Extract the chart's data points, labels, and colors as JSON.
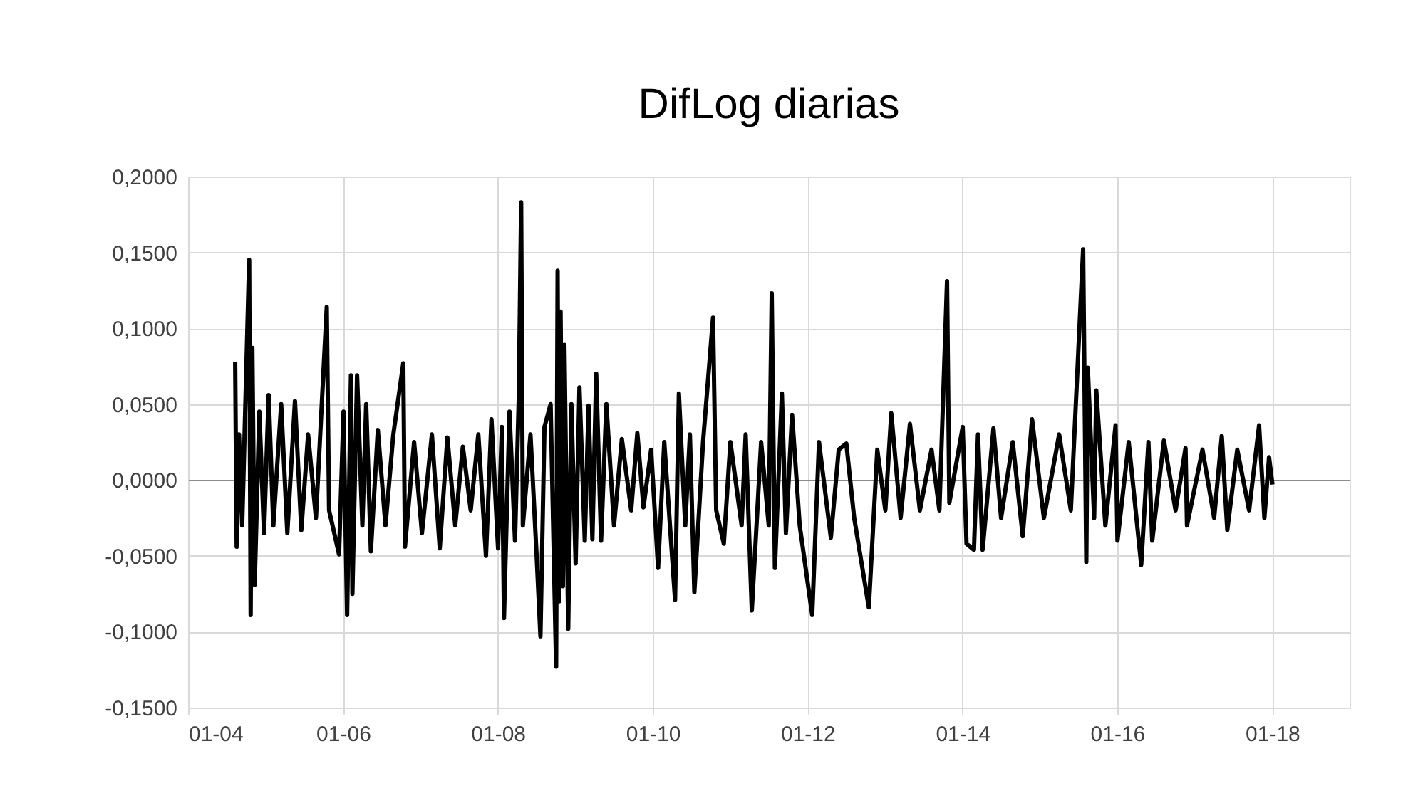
{
  "chart_data": {
    "type": "line",
    "title": "DifLog diarias",
    "x": [
      "2004-08-10",
      "2004-08-17",
      "2004-08-28",
      "2004-09-12",
      "2004-10-15",
      "2004-10-22",
      "2004-10-30",
      "2004-11-10",
      "2004-12-02",
      "2004-12-24",
      "2005-01-15",
      "2005-02-06",
      "2005-03-15",
      "2005-04-13",
      "2005-05-19",
      "2005-06-18",
      "2005-07-20",
      "2005-08-26",
      "2005-10-16",
      "2005-10-27",
      "2005-12-13",
      "2006-01-03",
      "2006-01-20",
      "2006-02-07",
      "2006-02-14",
      "2006-03-08",
      "2006-04-02",
      "2006-04-20",
      "2006-05-12",
      "2006-06-14",
      "2006-07-20",
      "2006-08-26",
      "2006-10-12",
      "2006-10-20",
      "2006-12-02",
      "2007-01-08",
      "2007-02-24",
      "2007-04-02",
      "2007-05-08",
      "2007-06-14",
      "2007-07-20",
      "2007-08-26",
      "2007-10-01",
      "2007-11-06",
      "2007-12-02",
      "2008-01-02",
      "2008-01-20",
      "2008-01-30",
      "2008-02-25",
      "2008-03-22",
      "2008-04-09",
      "2008-04-20",
      "2008-04-28",
      "2008-06-03",
      "2008-07-02",
      "2008-07-20",
      "2008-08-08",
      "2008-09-06",
      "2008-10-02",
      "2008-10-09",
      "2008-10-16",
      "2008-10-23",
      "2008-11-03",
      "2008-11-10",
      "2008-11-28",
      "2008-12-13",
      "2009-01-02",
      "2009-01-20",
      "2009-02-14",
      "2009-03-04",
      "2009-03-22",
      "2009-04-09",
      "2009-05-02",
      "2009-05-27",
      "2009-07-02",
      "2009-08-08",
      "2009-09-21",
      "2009-10-20",
      "2009-11-18",
      "2009-12-24",
      "2010-01-26",
      "2010-02-24",
      "2010-04-16",
      "2010-05-04",
      "2010-06-03",
      "2010-06-25",
      "2010-07-16",
      "2010-08-26",
      "2010-10-12",
      "2010-10-27",
      "2010-12-02",
      "2011-01-02",
      "2011-02-24",
      "2011-03-15",
      "2011-04-13",
      "2011-05-27",
      "2011-07-02",
      "2011-07-16",
      "2011-07-31",
      "2011-09-02",
      "2011-09-21",
      "2011-10-20",
      "2011-11-25",
      "2012-01-23",
      "2012-02-24",
      "2012-04-20",
      "2012-05-27",
      "2012-07-02",
      "2012-08-08",
      "2012-10-16",
      "2012-11-25",
      "2013-01-02",
      "2013-01-30",
      "2013-03-15",
      "2013-04-28",
      "2013-06-14",
      "2013-08-08",
      "2013-09-14",
      "2013-10-20",
      "2013-10-31",
      "2014-01-02",
      "2014-01-20",
      "2014-02-24",
      "2014-03-15",
      "2014-04-06",
      "2014-05-27",
      "2014-07-02",
      "2014-08-26",
      "2014-10-12",
      "2014-11-25",
      "2015-01-20",
      "2015-04-02",
      "2015-05-27",
      "2015-07-24",
      "2015-08-08",
      "2015-08-15",
      "2015-09-14",
      "2015-09-24",
      "2015-11-06",
      "2015-12-24",
      "2016-01-02",
      "2016-02-24",
      "2016-04-23",
      "2016-05-27",
      "2016-06-14",
      "2016-08-08",
      "2016-10-02",
      "2016-11-18",
      "2016-11-25",
      "2017-02-06",
      "2017-04-02",
      "2017-05-08",
      "2017-06-03",
      "2017-07-20",
      "2017-09-14",
      "2017-10-31",
      "2017-11-25",
      "2017-12-17",
      "2018-01-02"
    ],
    "series": [
      {
        "color": "#000000",
        "values": [
          0.078,
          -0.044,
          0.03,
          -0.03,
          0.145,
          -0.089,
          0.087,
          -0.069,
          0.045,
          -0.035,
          0.056,
          -0.03,
          0.05,
          -0.035,
          0.052,
          -0.033,
          0.03,
          -0.025,
          0.114,
          -0.02,
          -0.049,
          0.045,
          -0.089,
          0.069,
          -0.075,
          0.069,
          -0.03,
          0.05,
          -0.047,
          0.033,
          -0.03,
          0.03,
          0.077,
          -0.044,
          0.025,
          -0.035,
          0.03,
          -0.045,
          0.028,
          -0.03,
          0.022,
          -0.02,
          0.03,
          -0.05,
          0.04,
          -0.045,
          0.035,
          -0.091,
          0.045,
          -0.04,
          0.055,
          0.183,
          -0.03,
          0.03,
          -0.05,
          -0.103,
          0.035,
          0.05,
          -0.123,
          0.138,
          -0.08,
          0.111,
          -0.07,
          0.089,
          -0.098,
          0.05,
          -0.055,
          0.061,
          -0.04,
          0.049,
          -0.039,
          0.07,
          -0.04,
          0.05,
          -0.03,
          0.027,
          -0.02,
          0.031,
          -0.018,
          0.02,
          -0.058,
          0.025,
          -0.079,
          0.057,
          -0.03,
          0.03,
          -0.074,
          0.025,
          0.107,
          -0.02,
          -0.042,
          0.025,
          -0.03,
          0.03,
          -0.086,
          0.025,
          -0.03,
          0.123,
          -0.058,
          0.057,
          -0.035,
          0.043,
          -0.03,
          -0.089,
          0.025,
          -0.038,
          0.02,
          0.024,
          -0.025,
          -0.084,
          0.02,
          -0.02,
          0.044,
          -0.025,
          0.037,
          -0.02,
          0.02,
          -0.02,
          0.131,
          -0.015,
          0.035,
          -0.042,
          -0.046,
          0.03,
          -0.046,
          0.034,
          -0.025,
          0.025,
          -0.037,
          0.04,
          -0.025,
          0.03,
          -0.02,
          0.152,
          -0.054,
          0.074,
          -0.025,
          0.059,
          -0.03,
          0.036,
          -0.04,
          0.025,
          -0.056,
          0.025,
          -0.04,
          0.026,
          -0.02,
          0.021,
          -0.03,
          0.02,
          -0.025,
          0.029,
          -0.033,
          0.02,
          -0.02,
          0.036,
          -0.025,
          0.015,
          -0.003
        ]
      }
    ],
    "xlim": [
      "2004-01-01",
      "2019-01-01"
    ],
    "xticks": [
      {
        "value": "2004-01-01",
        "label": "01-04"
      },
      {
        "value": "2006-01-01",
        "label": "01-06"
      },
      {
        "value": "2008-01-01",
        "label": "01-08"
      },
      {
        "value": "2010-01-01",
        "label": "01-10"
      },
      {
        "value": "2012-01-01",
        "label": "01-12"
      },
      {
        "value": "2014-01-01",
        "label": "01-14"
      },
      {
        "value": "2016-01-01",
        "label": "01-16"
      },
      {
        "value": "2018-01-01",
        "label": "01-18"
      }
    ],
    "ylim": [
      -0.15,
      0.2
    ],
    "yticks": [
      {
        "value": -0.15,
        "label": "-0,1500"
      },
      {
        "value": -0.1,
        "label": "-0,1000"
      },
      {
        "value": -0.05,
        "label": "-0,0500"
      },
      {
        "value": 0,
        "label": "0,0000"
      },
      {
        "value": 0.05,
        "label": "0,0500"
      },
      {
        "value": 0.1,
        "label": "0,1000"
      },
      {
        "value": 0.15,
        "label": "0,1500"
      },
      {
        "value": 0.2,
        "label": "0,2000"
      }
    ],
    "grid": true
  }
}
